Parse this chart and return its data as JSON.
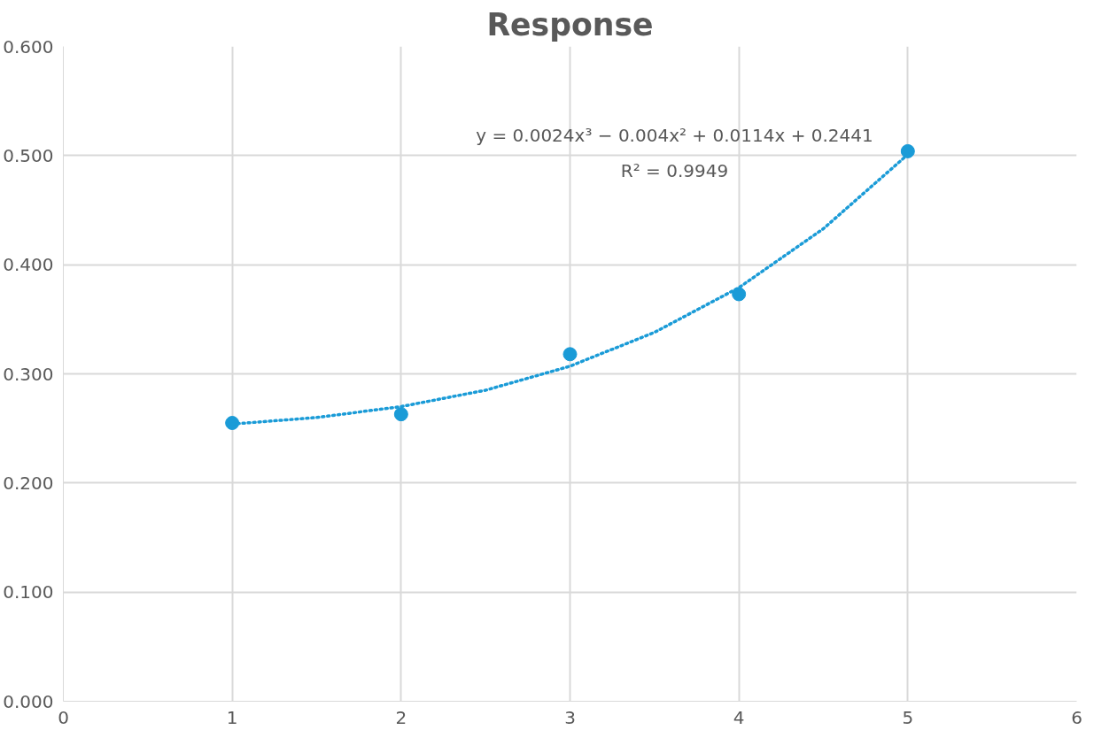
{
  "chart_data": {
    "type": "scatter",
    "title": "Response",
    "xlim": [
      0,
      6
    ],
    "xticks": [
      0,
      1,
      2,
      3,
      4,
      5,
      6
    ],
    "ylim": [
      0,
      0.6
    ],
    "yticks": [
      {
        "value": 0,
        "label": "0.000"
      },
      {
        "value": 0.1,
        "label": "0.100"
      },
      {
        "value": 0.2,
        "label": "0.200"
      },
      {
        "value": 0.3,
        "label": "0.300"
      },
      {
        "value": 0.4,
        "label": "0.400"
      },
      {
        "value": 0.5,
        "label": "0.500"
      },
      {
        "value": 0.6,
        "label": "0.600"
      }
    ],
    "grid": true,
    "series": [
      {
        "type": "scatter",
        "color": "#1a9bd7",
        "marker": "circle",
        "x": [
          1,
          2,
          3,
          4,
          5
        ],
        "values": [
          0.255,
          0.263,
          0.318,
          0.373,
          0.504
        ]
      },
      {
        "type": "line",
        "color": "#1a9bd7",
        "line_style": "dotted",
        "marker": "none",
        "x": [
          1,
          1.5,
          2,
          2.5,
          3,
          3.5,
          4,
          4.5,
          5
        ],
        "values": [
          0.254,
          0.26,
          0.27,
          0.285,
          0.307,
          0.338,
          0.379,
          0.433,
          0.501
        ]
      }
    ],
    "annotations": [
      "y = 0.0024x³ − 0.004x² + 0.0114x + 0.2441",
      "R² = 0.9949"
    ]
  }
}
